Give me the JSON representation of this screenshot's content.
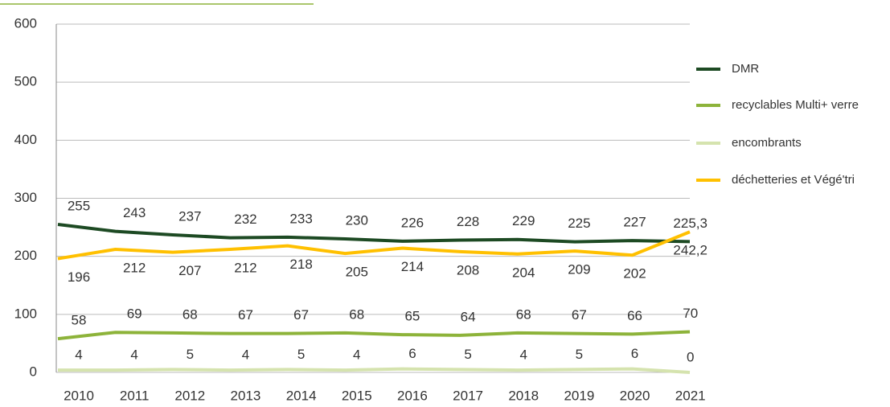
{
  "chart_data": {
    "type": "line",
    "categories": [
      "2010",
      "2011",
      "2012",
      "2013",
      "2014",
      "2015",
      "2016",
      "2017",
      "2018",
      "2019",
      "2020",
      "2021"
    ],
    "series": [
      {
        "name": "DMR",
        "color": "#1d4a23",
        "values": [
          255,
          243,
          237,
          232,
          233,
          230,
          226,
          228,
          229,
          225,
          227,
          225.3
        ],
        "value_labels": [
          "255",
          "243",
          "237",
          "232",
          "233",
          "230",
          "226",
          "228",
          "229",
          "225",
          "227",
          "225,3"
        ]
      },
      {
        "name": "recyclables Multi+ verre",
        "color": "#8db33a",
        "values": [
          58,
          69,
          68,
          67,
          67,
          68,
          65,
          64,
          68,
          67,
          66,
          70
        ]
      },
      {
        "name": "encombrants",
        "color": "#d5e3ae",
        "values": [
          4,
          4,
          5,
          4,
          5,
          4,
          6,
          5,
          4,
          5,
          6,
          0
        ]
      },
      {
        "name": "déchetteries et Végé'tri",
        "color": "#ffc000",
        "values": [
          196,
          212,
          207,
          212,
          218,
          205,
          214,
          208,
          204,
          209,
          202,
          242.2
        ],
        "value_labels": [
          "196",
          "212",
          "207",
          "212",
          "218",
          "205",
          "214",
          "208",
          "204",
          "209",
          "202",
          "242,2"
        ]
      }
    ],
    "ylim": [
      0,
      600
    ],
    "yticks": [
      0,
      100,
      200,
      300,
      400,
      500,
      600
    ],
    "grid": true,
    "legend": "right"
  }
}
